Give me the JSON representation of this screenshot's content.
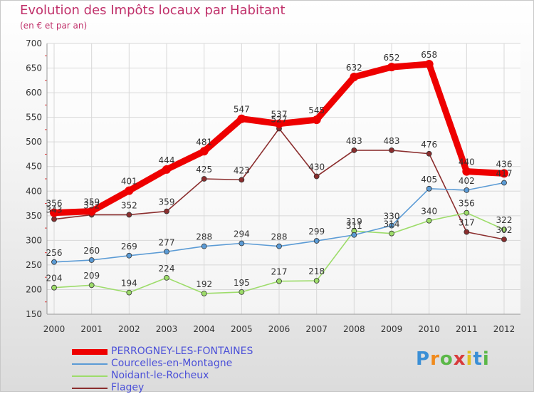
{
  "title": "Evolution des Impôts locaux par Habitant",
  "subtitle": "(en € et par an)",
  "logo": "Proxiti",
  "chart_data": {
    "type": "line",
    "x": [
      "2000",
      "2001",
      "2002",
      "2003",
      "2004",
      "2005",
      "2006",
      "2007",
      "2008",
      "2009",
      "2010",
      "2011",
      "2012"
    ],
    "ylim": [
      150,
      700
    ],
    "yticks": [
      150,
      200,
      250,
      300,
      350,
      400,
      450,
      500,
      550,
      600,
      650,
      700
    ],
    "grid": true,
    "legend": "bottom-left",
    "series": [
      {
        "name": "PERROGNEY-LES-FONTAINES",
        "color": "#ee0000",
        "values": [
          356,
          359,
          401,
          444,
          481,
          547,
          537,
          545,
          632,
          652,
          658,
          440,
          436
        ]
      },
      {
        "name": "Courcelles-en-Montagne",
        "color": "#5b9bd5",
        "values": [
          256,
          260,
          269,
          277,
          288,
          294,
          288,
          299,
          311,
          330,
          405,
          402,
          417
        ]
      },
      {
        "name": "Noidant-le-Rocheux",
        "color": "#9ddc6a",
        "values": [
          204,
          209,
          194,
          224,
          192,
          195,
          217,
          218,
          319,
          314,
          340,
          356,
          322
        ]
      },
      {
        "name": "Flagey",
        "color": "#8b2e2e",
        "values": [
          343,
          352,
          352,
          359,
          425,
          423,
          527,
          430,
          483,
          483,
          476,
          317,
          302
        ]
      }
    ]
  }
}
